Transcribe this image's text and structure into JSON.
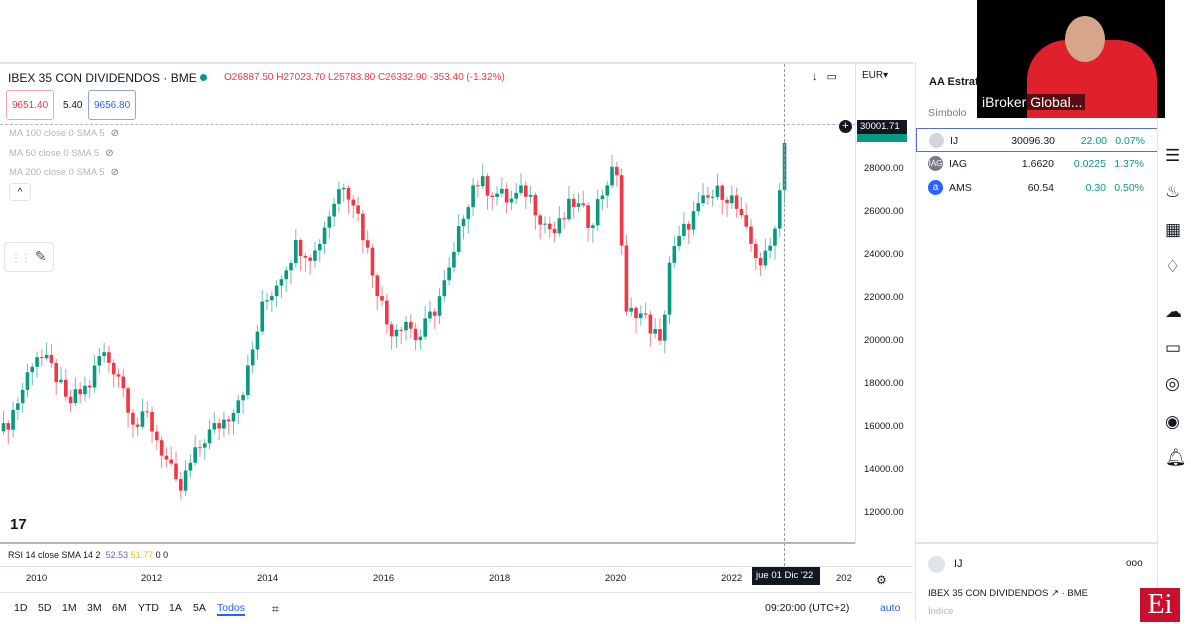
{
  "header": {
    "title": "IBEX 35 CON DIVIDENDOS · BME",
    "ohlc": "O26887.50 H27023.70 L25783.80 C26332.90 -353.40 (-1.32%)",
    "bid": "9651.40",
    "spread": "5.40",
    "ask": "9656.80",
    "currency": "EUR"
  },
  "indicators": [
    "MA 100 close 0 SMA 5",
    "MA 50 close 0 SMA 5",
    "MA 200 close 0 SMA 5"
  ],
  "rsi": {
    "label": "RSI 14 close SMA 14 2",
    "v1": "52.53",
    "v2": "51.77",
    "v3": "0 0"
  },
  "price_axis": [
    "28000.00",
    "26000.00",
    "24000.00",
    "22000.00",
    "20000.00",
    "18000.00",
    "16000.00",
    "14000.00",
    "12000.00"
  ],
  "current_price": "30001.71",
  "time_axis": [
    "2010",
    "2012",
    "2014",
    "2016",
    "2018",
    "2020",
    "2022",
    "202"
  ],
  "crosshair_date": "jue 01 Dic '22",
  "ranges": [
    "1D",
    "5D",
    "1M",
    "3M",
    "6M",
    "YTD",
    "1A",
    "5A",
    "Todos"
  ],
  "active_range": "Todos",
  "clock": "09:20:00 (UTC+2)",
  "auto": "auto",
  "colors": {
    "up": "#089981",
    "down": "#f23645",
    "accent": "#2962ff"
  },
  "chart_data": {
    "type": "candlestick",
    "ylim": [
      11000,
      31000
    ],
    "anchors_year": [
      2009.4,
      2009.7,
      2009.95,
      2010.3,
      2010.5,
      2010.9,
      2011.1,
      2011.4,
      2011.7,
      2011.9,
      2012.3,
      2012.45,
      2012.6,
      2012.9,
      2013.3,
      2013.6,
      2013.9,
      2014.3,
      2014.5,
      2014.8,
      2015.0,
      2015.3,
      2015.5,
      2015.8,
      2016.1,
      2016.4,
      2016.6,
      2016.9,
      2017.2,
      2017.4,
      2017.6,
      2017.9,
      2018.2,
      2018.5,
      2018.8,
      2019.0,
      2019.3,
      2019.6,
      2019.9,
      2020.1,
      2020.2,
      2020.4,
      2020.7,
      2020.85,
      2020.95,
      2021.3,
      2021.6,
      2021.9,
      2022.1,
      2022.3,
      2022.6,
      2022.75,
      2022.9,
      2023.0
    ],
    "anchors_close": [
      15800,
      17500,
      19500,
      18500,
      17000,
      18000,
      19500,
      18500,
      16000,
      16500,
      14000,
      12800,
      14000,
      15500,
      16500,
      18000,
      21500,
      23500,
      24500,
      24000,
      25500,
      27500,
      26500,
      23500,
      20500,
      21000,
      20000,
      21500,
      23500,
      26000,
      27500,
      27000,
      26500,
      27000,
      25500,
      25000,
      26500,
      25500,
      27500,
      28000,
      21000,
      21500,
      20500,
      19500,
      23500,
      25500,
      26500,
      27000,
      26500,
      25000,
      23500,
      24500,
      27000,
      30000
    ]
  },
  "watchlist": {
    "title": "AA Estrat",
    "column": "Símbolo",
    "rows": [
      {
        "sym": "IJ",
        "last": "30096.30",
        "chg": "22.00",
        "pct": "0.07%",
        "icon": "circle-grey"
      },
      {
        "sym": "IAG",
        "last": "1.6620",
        "chg": "0.0225",
        "pct": "1.37%",
        "icon": "IAG"
      },
      {
        "sym": "AMS",
        "last": "60.54",
        "chg": "0.30",
        "pct": "0.50%",
        "icon": "a"
      }
    ]
  },
  "detail": {
    "sym": "IJ",
    "name": "IBEX 35 CON DIVIDENDOS",
    "exchange": "· BME",
    "type": "Índice",
    "more": "ooo"
  },
  "webcam": {
    "name": "iBroker Global..."
  },
  "logo": "Ei"
}
